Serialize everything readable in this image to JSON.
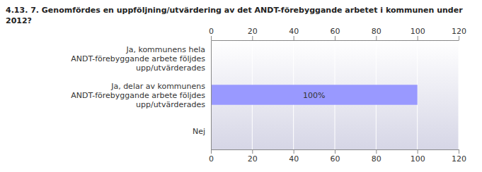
{
  "chart_data": {
    "type": "bar",
    "orientation": "horizontal",
    "title": "4.13. 7. Genomfördes en uppföljning/utvärdering av det ANDT-förebyggande arbetet i kommunen under 2012?",
    "categories": [
      "Ja, kommunens hela ANDT-förebyggande arbete följdes upp/utvärderades",
      "Ja, delar av kommunens ANDT-förebyggande arbete följdes upp/utvärderades",
      "Nej"
    ],
    "values": [
      0,
      100,
      0
    ],
    "data_labels": true,
    "value_labels": [
      null,
      "100%",
      null
    ],
    "color": "#9999ff",
    "xlim": [
      0,
      120
    ],
    "xticks": [
      0,
      20,
      40,
      60,
      80,
      100,
      120
    ],
    "grid": true
  }
}
